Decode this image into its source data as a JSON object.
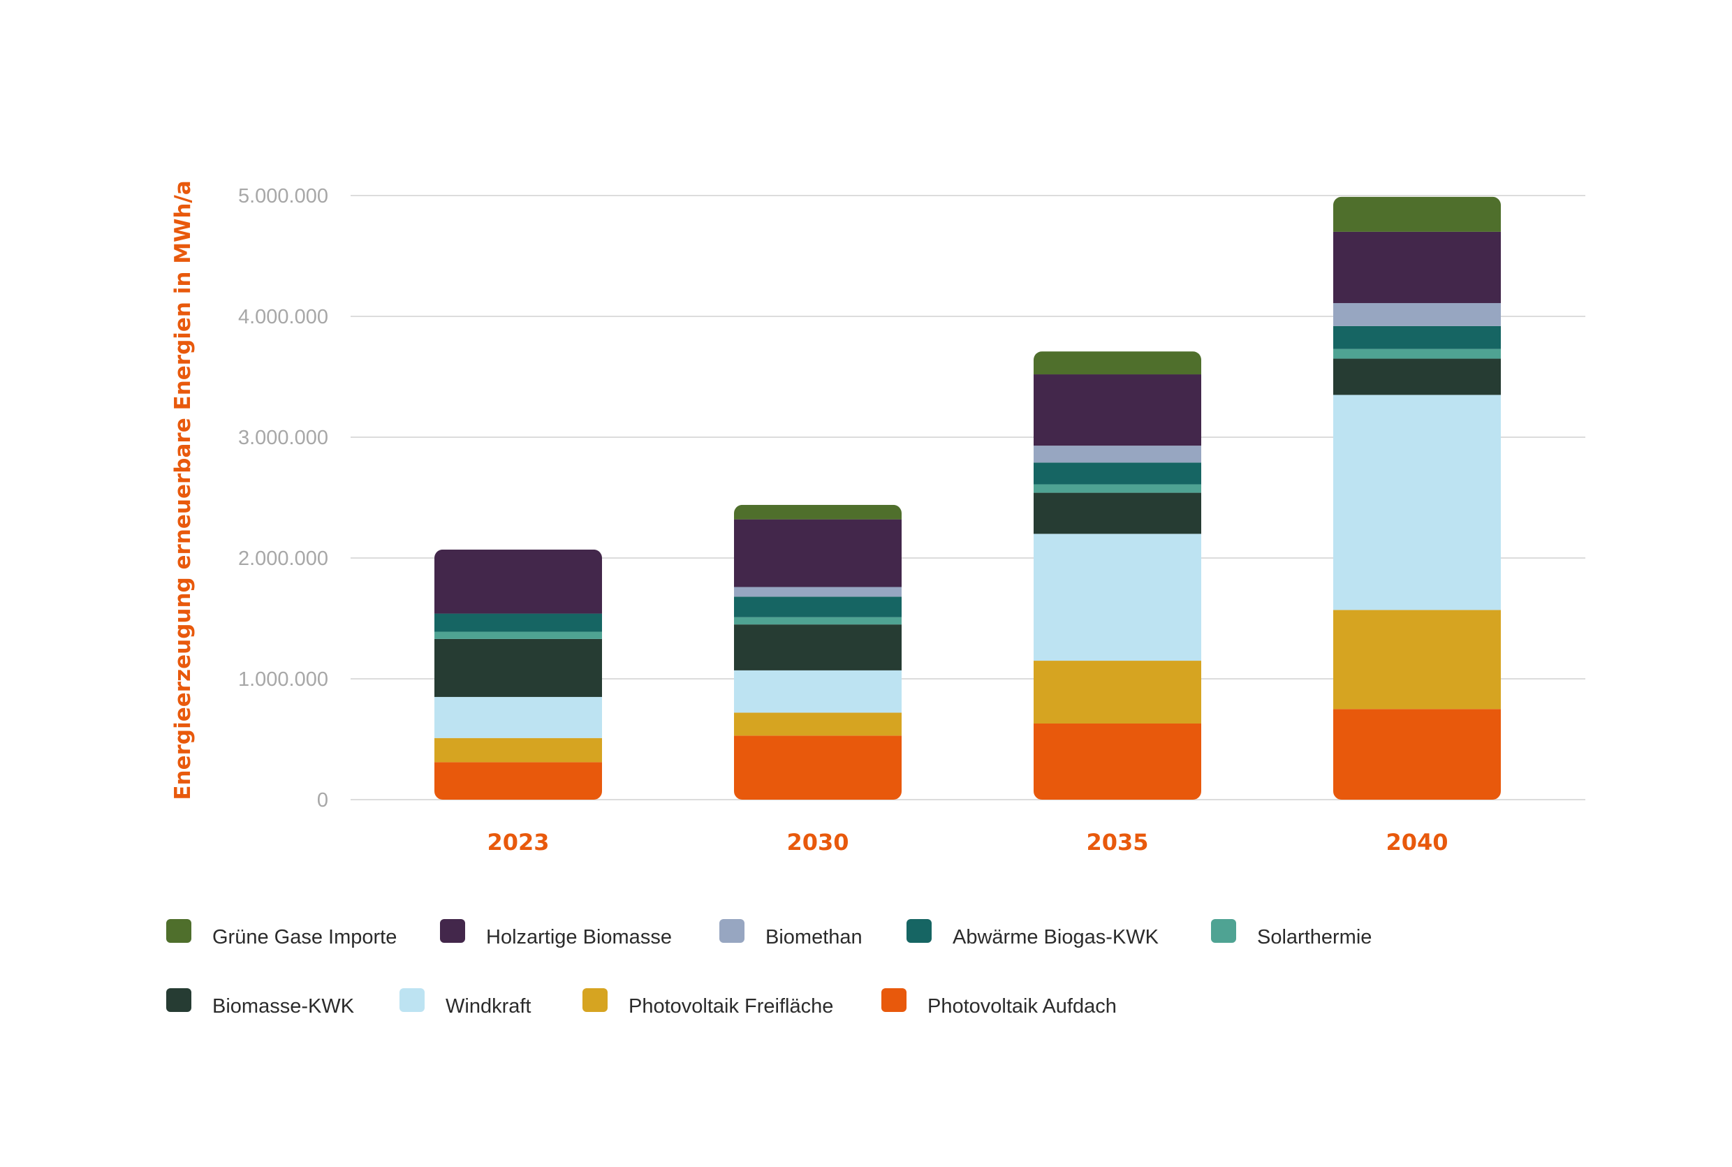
{
  "chart_data": {
    "type": "bar",
    "stacked": true,
    "categories": [
      "2023",
      "2030",
      "2035",
      "2040"
    ],
    "ylabel": "Energieerzeugung erneuerbare Energien in MWh/a",
    "xlabel": "",
    "ylim": [
      0,
      5000000
    ],
    "yticks": [
      0,
      1000000,
      2000000,
      3000000,
      4000000,
      5000000
    ],
    "ytick_labels": [
      "0",
      "1.000.000",
      "2.000.000",
      "3.000.000",
      "4.000.000",
      "5.000.000"
    ],
    "grid": true,
    "legend_position": "bottom",
    "series": [
      {
        "name": "Photovoltaik Aufdach",
        "color": "#e8590c",
        "values": [
          310000,
          530000,
          630000,
          750000
        ]
      },
      {
        "name": "Photovoltaik Freifläche",
        "color": "#d6a421",
        "values": [
          200000,
          190000,
          520000,
          820000
        ]
      },
      {
        "name": "Windkraft",
        "color": "#bde3f2",
        "values": [
          340000,
          350000,
          1050000,
          1780000
        ]
      },
      {
        "name": "Biomasse-KWK",
        "color": "#263c33",
        "values": [
          480000,
          380000,
          340000,
          300000
        ]
      },
      {
        "name": "Solarthermie",
        "color": "#4fa393",
        "values": [
          60000,
          60000,
          70000,
          80000
        ]
      },
      {
        "name": "Abwärme Biogas-KWK",
        "color": "#166563",
        "values": [
          150000,
          170000,
          180000,
          190000
        ]
      },
      {
        "name": "Biomethan",
        "color": "#97a6c1",
        "values": [
          0,
          80000,
          140000,
          190000
        ]
      },
      {
        "name": "Holzartige Biomasse",
        "color": "#43274b",
        "values": [
          530000,
          560000,
          590000,
          590000
        ]
      },
      {
        "name": "Grüne Gase Importe",
        "color": "#4f6f2c",
        "values": [
          0,
          120000,
          190000,
          290000
        ]
      }
    ],
    "legend_order": [
      "Grüne Gase Importe",
      "Holzartige Biomasse",
      "Biomethan",
      "Abwärme Biogas-KWK",
      "Solarthermie",
      "Biomasse-KWK",
      "Windkraft",
      "Photovoltaik Freifläche",
      "Photovoltaik Aufdach"
    ]
  },
  "colors": {
    "accent": "#e8590c",
    "grid": "#dcdcdc",
    "tick_text": "#a7a7a7"
  }
}
